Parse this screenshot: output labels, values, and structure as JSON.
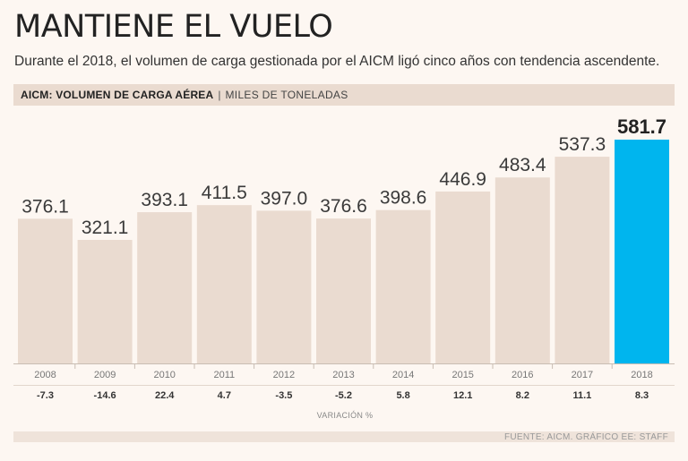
{
  "title": "MANTIENE EL VUELO",
  "subtitle": "Durante el 2018, el volumen de carga gestionada por el AICM ligó cinco años con tendencia ascendente.",
  "chart_header": {
    "main": "AICM: VOLUMEN DE CARGA AÉREA",
    "separator": "|",
    "unit": "MILES DE TONELADAS"
  },
  "source": "FUENTE: AICM. GRÁFICO EE: STAFF",
  "colors": {
    "bar": "#eadbd0",
    "highlight": "#00b5ee",
    "background": "#fdf7f2"
  },
  "chart_data": {
    "type": "bar",
    "title": "AICM: VOLUMEN DE CARGA AÉREA",
    "ylabel": "MILES DE TONELADAS",
    "categories": [
      "2008",
      "2009",
      "2010",
      "2011",
      "2012",
      "2013",
      "2014",
      "2015",
      "2016",
      "2017",
      "2018"
    ],
    "values": [
      376.1,
      321.1,
      393.1,
      411.5,
      397.0,
      376.6,
      398.6,
      446.9,
      483.4,
      537.3,
      581.7
    ],
    "value_labels": [
      "376.1",
      "321.1",
      "393.1",
      "411.5",
      "397.0",
      "376.6",
      "398.6",
      "446.9",
      "483.4",
      "537.3",
      "581.7"
    ],
    "highlight_index": 10,
    "variation_label": "VARIACIÓN %",
    "variation": [
      "-7.3",
      "-14.6",
      "22.4",
      "4.7",
      "-3.5",
      "-5.2",
      "5.8",
      "12.1",
      "8.2",
      "11.1",
      "8.3"
    ],
    "ylim": [
      0,
      600
    ],
    "grid": false
  }
}
